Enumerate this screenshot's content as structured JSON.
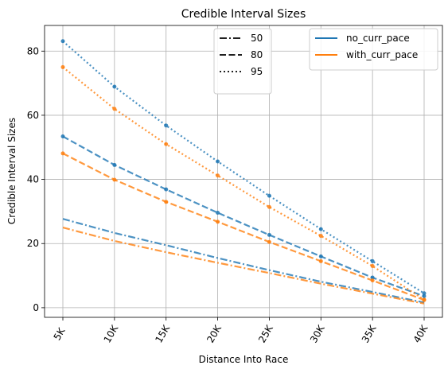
{
  "chart_data": {
    "type": "line",
    "title": "Credible Interval Sizes",
    "xlabel": "Distance Into Race",
    "ylabel": "Credible Interval Sizes",
    "categories": [
      "5K",
      "10K",
      "15K",
      "20K",
      "25K",
      "30K",
      "35K",
      "40K"
    ],
    "ylim": [
      -3,
      88
    ],
    "yticks": [
      0,
      20,
      40,
      60,
      80
    ],
    "grid": true,
    "colors": {
      "no_curr_pace": "#1f77b4",
      "with_curr_pace": "#ff7f0e"
    },
    "legend_levels": {
      "placement": "top-center",
      "entries": [
        {
          "label": "50",
          "style": "dashdot"
        },
        {
          "label": "80",
          "style": "dashed"
        },
        {
          "label": "95",
          "style": "dotted"
        }
      ]
    },
    "legend_models": {
      "placement": "top-right",
      "entries": [
        {
          "label": "no_curr_pace",
          "color": "#1f77b4"
        },
        {
          "label": "with_curr_pace",
          "color": "#ff7f0e"
        }
      ]
    },
    "series": [
      {
        "model": "no_curr_pace",
        "level": "50",
        "style": "dashdot",
        "markers": false,
        "values": [
          27.7,
          23.3,
          19.5,
          15.5,
          11.7,
          8.1,
          4.9,
          1.6
        ]
      },
      {
        "model": "with_curr_pace",
        "level": "50",
        "style": "dashdot",
        "markers": false,
        "values": [
          25.0,
          20.8,
          17.3,
          14.0,
          10.8,
          7.5,
          4.4,
          1.3
        ]
      },
      {
        "model": "no_curr_pace",
        "level": "80",
        "style": "dashed",
        "markers": true,
        "values": [
          53.4,
          44.5,
          36.9,
          29.6,
          22.7,
          16.0,
          9.4,
          3.6
        ]
      },
      {
        "model": "with_curr_pace",
        "level": "80",
        "style": "dashed",
        "markers": true,
        "values": [
          48.1,
          39.9,
          33.0,
          26.8,
          20.5,
          14.5,
          8.5,
          2.4
        ]
      },
      {
        "model": "no_curr_pace",
        "level": "95",
        "style": "dotted",
        "markers": true,
        "values": [
          83.1,
          68.9,
          56.8,
          45.6,
          34.9,
          24.5,
          14.5,
          4.5
        ]
      },
      {
        "model": "with_curr_pace",
        "level": "95",
        "style": "dotted",
        "markers": true,
        "values": [
          75.0,
          62.0,
          51.0,
          41.2,
          31.4,
          22.4,
          13.0,
          2.5
        ]
      }
    ]
  }
}
